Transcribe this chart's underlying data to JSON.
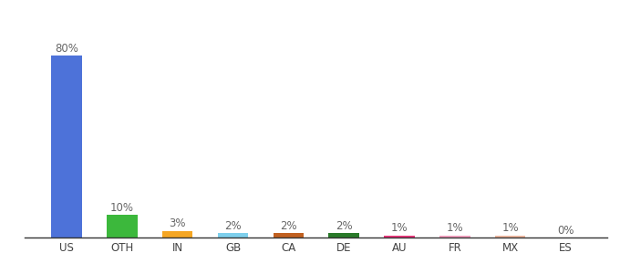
{
  "categories": [
    "US",
    "OTH",
    "IN",
    "GB",
    "CA",
    "DE",
    "AU",
    "FR",
    "MX",
    "ES"
  ],
  "values": [
    80,
    10,
    3,
    2,
    2,
    2,
    1,
    1,
    1,
    0
  ],
  "labels": [
    "80%",
    "10%",
    "3%",
    "2%",
    "2%",
    "2%",
    "1%",
    "1%",
    "1%",
    "0%"
  ],
  "colors": [
    "#4d72d9",
    "#3cb83c",
    "#f5a623",
    "#7ecfec",
    "#c06020",
    "#2a7a2a",
    "#e8357a",
    "#f4a0c0",
    "#f0b8a0",
    "#d0a890"
  ],
  "ylim": [
    0,
    90
  ],
  "background_color": "#ffffff",
  "label_fontsize": 8.5,
  "tick_fontsize": 8.5,
  "bar_width": 0.55
}
